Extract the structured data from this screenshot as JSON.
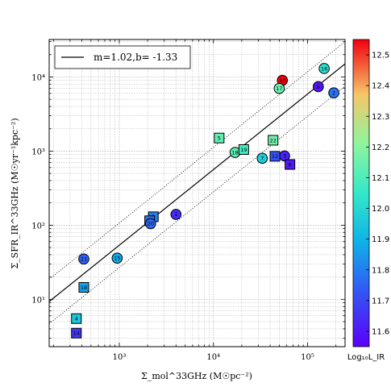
{
  "chart_data": {
    "type": "scatter",
    "x_scale": "log",
    "y_scale": "log",
    "xlim": [
      180,
      250000
    ],
    "ylim": [
      2.3,
      32000
    ],
    "grid": true,
    "xlabel": "Σ_mol^33GHz (M☉pc⁻²)",
    "ylabel": "Σ_SFR_IR^33GHz (M☉yr⁻¹kpc⁻²)",
    "x_ticks": [
      {
        "value": 1000,
        "label": "10³"
      },
      {
        "value": 10000,
        "label": "10⁴"
      },
      {
        "value": 100000,
        "label": "10⁵"
      }
    ],
    "y_ticks": [
      {
        "value": 10,
        "label": "10¹"
      },
      {
        "value": 100,
        "label": "10²"
      },
      {
        "value": 1000,
        "label": "10³"
      },
      {
        "value": 10000,
        "label": "10⁴"
      }
    ],
    "fit_line": {
      "slope": 1.02,
      "intercept": -1.33,
      "label": "m=1.02,b= -1.33",
      "offset_dex": 0.3
    },
    "legend_position": "top-left",
    "colorbar": {
      "label": "Log₁₀L_IR",
      "min": 11.55,
      "max": 12.55,
      "ticks": [
        "11.6",
        "11.7",
        "11.8",
        "11.9",
        "12.0",
        "12.1",
        "12.2",
        "12.3",
        "12.4",
        "12.5"
      ]
    },
    "points": [
      {
        "id": "1",
        "x": 4000,
        "y": 140,
        "c": 11.64,
        "marker": "circle"
      },
      {
        "id": "2",
        "x": 190000,
        "y": 6100,
        "c": 11.78,
        "marker": "circle"
      },
      {
        "id": "3",
        "x": 57000,
        "y": 860,
        "c": 11.62,
        "marker": "circle"
      },
      {
        "id": "4",
        "x": 350,
        "y": 5.5,
        "c": 11.95,
        "marker": "square"
      },
      {
        "id": "5",
        "x": 11500,
        "y": 1500,
        "c": 12.13,
        "marker": "square"
      },
      {
        "id": "6",
        "x": 130000,
        "y": 7400,
        "c": 11.59,
        "marker": "circle"
      },
      {
        "id": "7",
        "x": 33000,
        "y": 800,
        "c": 11.97,
        "marker": "circle"
      },
      {
        "id": "9",
        "x": 2300,
        "y": 130,
        "c": 11.8,
        "marker": "square"
      },
      {
        "id": "10",
        "x": 54000,
        "y": 9000,
        "c": 12.55,
        "marker": "circle"
      },
      {
        "id": "11",
        "x": 2100,
        "y": 115,
        "c": 11.78,
        "marker": "square"
      },
      {
        "id": "12",
        "x": 45000,
        "y": 850,
        "c": 11.72,
        "marker": "square"
      },
      {
        "id": "14",
        "x": 350,
        "y": 3.5,
        "c": 11.66,
        "marker": "square"
      },
      {
        "id": "15",
        "x": 950,
        "y": 36,
        "c": 11.88,
        "marker": "circle"
      },
      {
        "id": "16",
        "x": 150000,
        "y": 13000,
        "c": 12.02,
        "marker": "circle"
      },
      {
        "id": "17",
        "x": 50000,
        "y": 7000,
        "c": 12.15,
        "marker": "circle"
      },
      {
        "id": "18",
        "x": 17000,
        "y": 960,
        "c": 12.12,
        "marker": "circle"
      },
      {
        "id": "19",
        "x": 21000,
        "y": 1050,
        "c": 12.08,
        "marker": "square"
      },
      {
        "id": "20",
        "x": 2150,
        "y": 105,
        "c": 11.76,
        "marker": "circle"
      },
      {
        "id": "21",
        "x": 420,
        "y": 35,
        "c": 11.75,
        "marker": "circle"
      },
      {
        "id": "22",
        "x": 43000,
        "y": 1400,
        "c": 12.16,
        "marker": "square"
      },
      {
        "id": "6",
        "x": 65000,
        "y": 660,
        "c": 11.6,
        "marker": "square"
      },
      {
        "id": "18",
        "x": 420,
        "y": 14.5,
        "c": 11.86,
        "marker": "square"
      }
    ]
  }
}
